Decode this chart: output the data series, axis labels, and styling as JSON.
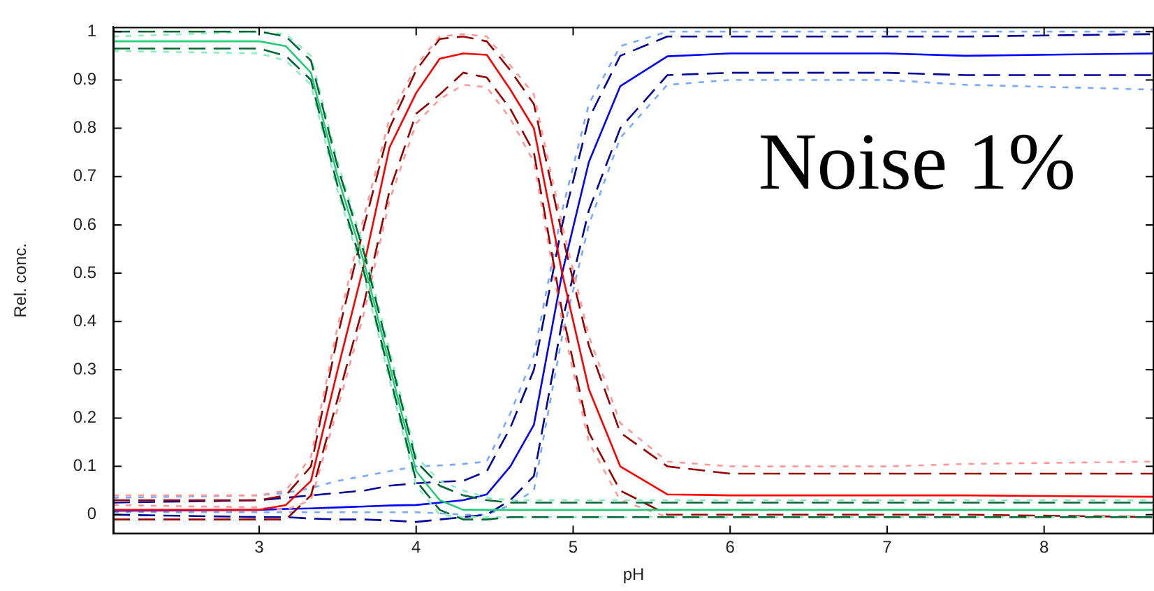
{
  "chart_data": {
    "type": "line",
    "xlabel": "pH",
    "ylabel": "Rel. conc.",
    "x": [
      2.07,
      3.0,
      3.17,
      3.33,
      3.5,
      3.67,
      3.83,
      4.0,
      4.15,
      4.3,
      4.45,
      4.6,
      4.75,
      4.93,
      5.1,
      5.3,
      5.6,
      6.0,
      7.0,
      7.5,
      8.7
    ],
    "series": [
      {
        "color": "#22cc77",
        "line_style": "solid",
        "values": [
          0.98,
          0.98,
          0.97,
          0.915,
          0.7,
          0.52,
          0.31,
          0.09,
          0.03,
          0.01,
          0.01,
          0.01,
          0.01,
          0.01,
          0.01,
          0.01,
          0.01,
          0.01,
          0.01,
          0.01,
          0.01
        ]
      },
      {
        "color": "#006633",
        "line_style": "dashed",
        "values": [
          1.0,
          1.0,
          0.99,
          0.94,
          0.72,
          0.54,
          0.33,
          0.11,
          0.06,
          0.04,
          0.03,
          0.025,
          0.025,
          0.025,
          0.025,
          0.025,
          0.025,
          0.025,
          0.025,
          0.025,
          0.025
        ]
      },
      {
        "color": "#006633",
        "line_style": "dashed",
        "values": [
          0.965,
          0.965,
          0.95,
          0.9,
          0.68,
          0.5,
          0.29,
          0.07,
          0.01,
          -0.01,
          -0.01,
          -0.005,
          -0.005,
          -0.005,
          -0.005,
          -0.005,
          -0.005,
          -0.005,
          -0.005,
          -0.005,
          -0.005
        ]
      },
      {
        "color": "#88eebb",
        "line_style": "dotted",
        "values": [
          0.99,
          1.0,
          0.995,
          0.95,
          0.73,
          0.55,
          0.34,
          0.12,
          0.07,
          0.05,
          0.035,
          0.03,
          0.03,
          0.03,
          0.03,
          0.03,
          0.03,
          0.03,
          0.03,
          0.03,
          0.03
        ]
      },
      {
        "color": "#88eebb",
        "line_style": "dotted",
        "values": [
          0.96,
          0.955,
          0.94,
          0.89,
          0.67,
          0.49,
          0.28,
          0.06,
          0.0,
          -0.005,
          -0.005,
          -0.005,
          -0.005,
          -0.005,
          -0.005,
          -0.005,
          -0.005,
          -0.005,
          -0.005,
          -0.005,
          -0.005
        ]
      },
      {
        "color": "#ff0000",
        "line_style": "solid",
        "values": [
          0.01,
          0.01,
          0.02,
          0.07,
          0.3,
          0.52,
          0.76,
          0.873,
          0.944,
          0.955,
          0.952,
          0.88,
          0.8,
          0.5,
          0.26,
          0.1,
          0.042,
          0.04,
          0.04,
          0.04,
          0.037
        ]
      },
      {
        "color": "#990000",
        "line_style": "dashed",
        "values": [
          0.03,
          0.03,
          0.04,
          0.1,
          0.37,
          0.6,
          0.8,
          0.92,
          0.985,
          0.99,
          0.98,
          0.92,
          0.85,
          0.58,
          0.35,
          0.17,
          0.1,
          0.085,
          0.085,
          0.085,
          0.085
        ]
      },
      {
        "color": "#990000",
        "line_style": "dashed",
        "values": [
          -0.01,
          -0.01,
          -0.01,
          0.04,
          0.24,
          0.44,
          0.67,
          0.83,
          0.87,
          0.915,
          0.905,
          0.84,
          0.75,
          0.42,
          0.17,
          0.05,
          0.0,
          0.0,
          0.0,
          0.0,
          -0.005
        ]
      },
      {
        "color": "#ff9999",
        "line_style": "dotted",
        "values": [
          0.04,
          0.04,
          0.05,
          0.12,
          0.39,
          0.62,
          0.82,
          0.93,
          0.99,
          0.995,
          0.99,
          0.93,
          0.87,
          0.6,
          0.37,
          0.19,
          0.11,
          0.1,
          0.1,
          0.105,
          0.11
        ]
      },
      {
        "color": "#ff9999",
        "line_style": "dotted",
        "values": [
          0.02,
          0.015,
          0.01,
          0.03,
          0.22,
          0.42,
          0.65,
          0.81,
          0.86,
          0.89,
          0.885,
          0.82,
          0.73,
          0.4,
          0.15,
          0.03,
          -0.005,
          -0.005,
          -0.005,
          -0.005,
          -0.005
        ]
      },
      {
        "color": "#0000ff",
        "line_style": "solid",
        "values": [
          0.008,
          0.01,
          0.012,
          0.013,
          0.015,
          0.017,
          0.019,
          0.02,
          0.025,
          0.03,
          0.042,
          0.1,
          0.186,
          0.5,
          0.73,
          0.887,
          0.949,
          0.955,
          0.955,
          0.95,
          0.955
        ]
      },
      {
        "color": "#000099",
        "line_style": "dashed",
        "values": [
          0.025,
          0.03,
          0.035,
          0.04,
          0.045,
          0.05,
          0.06,
          0.065,
          0.068,
          0.07,
          0.09,
          0.18,
          0.3,
          0.6,
          0.82,
          0.95,
          0.99,
          0.99,
          0.99,
          0.99,
          0.995
        ]
      },
      {
        "color": "#000099",
        "line_style": "dashed",
        "values": [
          0.0,
          -0.005,
          -0.005,
          -0.008,
          -0.01,
          -0.01,
          -0.012,
          -0.015,
          -0.01,
          -0.005,
          0.0,
          0.03,
          0.08,
          0.4,
          0.63,
          0.8,
          0.91,
          0.915,
          0.915,
          0.91,
          0.91
        ]
      },
      {
        "color": "#77aaff",
        "line_style": "dotted",
        "values": [
          0.035,
          0.04,
          0.045,
          0.055,
          0.07,
          0.08,
          0.09,
          0.1,
          0.102,
          0.105,
          0.11,
          0.21,
          0.33,
          0.63,
          0.85,
          0.97,
          1.0,
          1.0,
          1.0,
          1.0,
          1.0
        ]
      },
      {
        "color": "#77aaff",
        "line_style": "dotted",
        "values": [
          0.005,
          0.005,
          0.005,
          0.005,
          0.005,
          0.005,
          0.005,
          0.005,
          0.003,
          0.0,
          0.0,
          0.02,
          0.05,
          0.37,
          0.6,
          0.78,
          0.89,
          0.9,
          0.9,
          0.89,
          0.88
        ]
      }
    ],
    "xlim": [
      2.07,
      8.7
    ],
    "ylim": [
      -0.04,
      1.01
    ],
    "xticks": [
      3,
      4,
      5,
      6,
      7,
      8
    ],
    "yticks": [
      0,
      0.1,
      0.2,
      0.3,
      0.4,
      0.5,
      0.6,
      0.7,
      0.8,
      0.9,
      1
    ],
    "grid": false,
    "legend": false,
    "marker": "none",
    "annotations": [
      "Noise 1%"
    ]
  }
}
